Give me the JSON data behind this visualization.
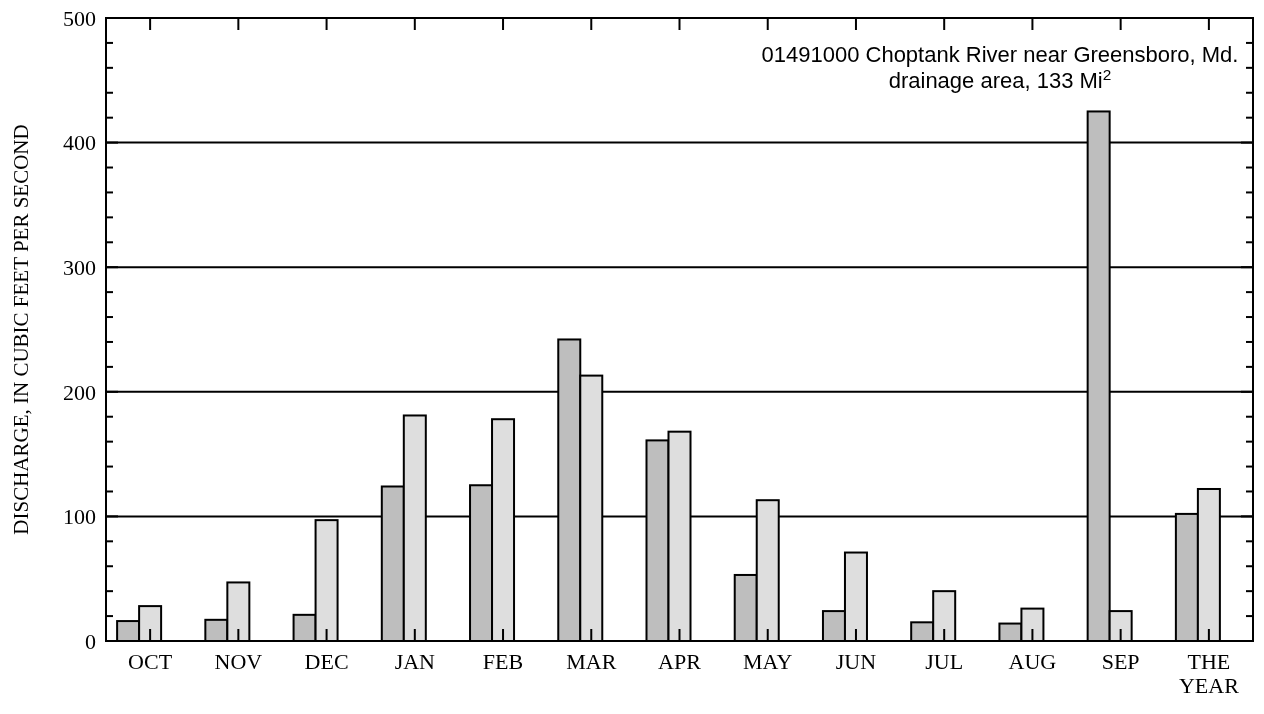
{
  "chart_data": {
    "type": "bar",
    "ylabel": "DISCHARGE, IN CUBIC FEET PER SECOND",
    "categories": [
      "OCT",
      "NOV",
      "DEC",
      "JAN",
      "FEB",
      "MAR",
      "APR",
      "MAY",
      "JUN",
      "JUL",
      "AUG",
      "SEP",
      "THE YEAR"
    ],
    "series": [
      {
        "color": "#bebebe",
        "values": [
          16,
          17,
          21,
          124,
          125,
          242,
          161,
          53,
          24,
          15,
          14,
          425,
          102
        ]
      },
      {
        "color": "#dedede",
        "values": [
          28,
          47,
          97,
          181,
          178,
          213,
          168,
          113,
          71,
          40,
          26,
          24,
          122
        ]
      }
    ],
    "ylim": [
      0,
      500
    ],
    "yticks": [
      0,
      {
        "value": 20,
        "label": null
      },
      {
        "value": 40,
        "label": null
      },
      {
        "value": 60,
        "label": null
      },
      {
        "value": 80,
        "label": null
      },
      100,
      {
        "value": 120,
        "label": null
      },
      {
        "value": 140,
        "label": null
      },
      {
        "value": 160,
        "label": null
      },
      {
        "value": 180,
        "label": null
      },
      200,
      {
        "value": 220,
        "label": null
      },
      {
        "value": 240,
        "label": null
      },
      {
        "value": 260,
        "label": null
      },
      {
        "value": 280,
        "label": null
      },
      300,
      {
        "value": 320,
        "label": null
      },
      {
        "value": 340,
        "label": null
      },
      {
        "value": 360,
        "label": null
      },
      {
        "value": 380,
        "label": null
      },
      400,
      {
        "value": 420,
        "label": null
      },
      {
        "value": 440,
        "label": null
      },
      {
        "value": 460,
        "label": null
      },
      {
        "value": 480,
        "label": null
      },
      500
    ],
    "grid": "y",
    "annotations": [
      "01491000 Choptank River near Greensboro, Md.",
      "drainage area, 133 Mi$^{2}$"
    ]
  }
}
